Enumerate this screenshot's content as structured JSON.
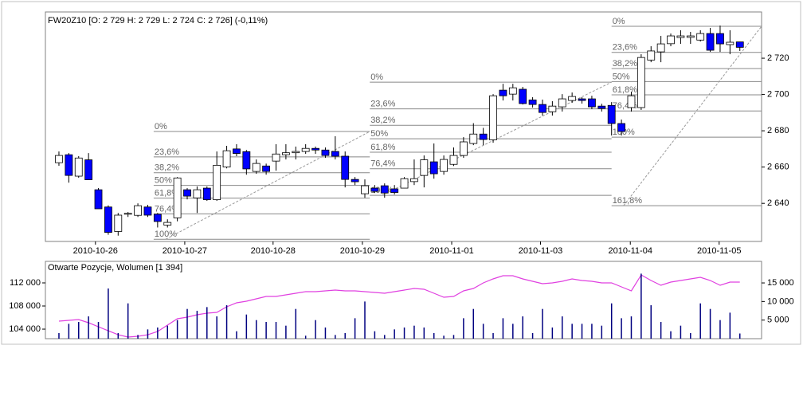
{
  "chart_data": [
    {
      "type": "candlestick",
      "title": "FW20Z10 [O: 2 729  H: 2 729  L: 2 724  C: 2 726] (-0,11%)",
      "up_color": "#ffffff",
      "down_color": "#0000ff",
      "xlim": [
        -1.37,
        71.2
      ],
      "ylim": [
        2619,
        2745.5
      ],
      "yticks": [
        {
          "value": 2640,
          "label": "2 640"
        },
        {
          "value": 2660,
          "label": "2 660"
        },
        {
          "value": 2680,
          "label": "2 680"
        },
        {
          "value": 2700,
          "label": "2 700"
        },
        {
          "value": 2720,
          "label": "2 720"
        }
      ],
      "xticks": [
        {
          "value": 3.7,
          "label": "2010-10-26"
        },
        {
          "value": 12.75,
          "label": "2010-10-27"
        },
        {
          "value": 21.7,
          "label": "2010-10-28"
        },
        {
          "value": 30.75,
          "label": "2010-10-29"
        },
        {
          "value": 39.8,
          "label": "2010-11-01"
        },
        {
          "value": 48.8,
          "label": "2010-11-03"
        },
        {
          "value": 57.9,
          "label": "2010-11-04"
        },
        {
          "value": 66.9,
          "label": "2010-11-05"
        }
      ],
      "candles": [
        {
          "open": 2662.4,
          "high": 2668.6,
          "low": 2660.7,
          "close": 2666.4
        },
        {
          "open": 2666.8,
          "high": 2667.7,
          "low": 2651.4,
          "close": 2655.4
        },
        {
          "open": 2655,
          "high": 2666,
          "low": 2654.1,
          "close": 2665
        },
        {
          "open": 2664,
          "high": 2667.7,
          "low": 2653,
          "close": 2653
        },
        {
          "open": 2647.5,
          "high": 2648.4,
          "low": 2637,
          "close": 2637
        },
        {
          "open": 2638,
          "high": 2638.9,
          "low": 2622.7,
          "close": 2624
        },
        {
          "open": 2624.5,
          "high": 2634.7,
          "low": 2622.2,
          "close": 2633.5
        },
        {
          "open": 2634,
          "high": 2635.2,
          "low": 2632.5,
          "close": 2634.5
        },
        {
          "open": 2633.4,
          "high": 2640,
          "low": 2632.5,
          "close": 2638.7
        },
        {
          "open": 2638,
          "high": 2639.2,
          "low": 2632.5,
          "close": 2633.5
        },
        {
          "open": 2634,
          "high": 2634.7,
          "low": 2626.7,
          "close": 2630
        },
        {
          "open": 2628,
          "high": 2631.2,
          "low": 2626.7,
          "close": 2629.5
        },
        {
          "open": 2632,
          "high": 2654.5,
          "low": 2630.1,
          "close": 2654
        },
        {
          "open": 2647.5,
          "high": 2648.4,
          "low": 2642.2,
          "close": 2644
        },
        {
          "open": 2643,
          "high": 2649.3,
          "low": 2634.7,
          "close": 2647.5
        },
        {
          "open": 2648.4,
          "high": 2649.3,
          "low": 2641.4,
          "close": 2642
        },
        {
          "open": 2642,
          "high": 2668.6,
          "low": 2641.4,
          "close": 2661
        },
        {
          "open": 2660,
          "high": 2671.7,
          "low": 2659.3,
          "close": 2669
        },
        {
          "open": 2670,
          "high": 2672.6,
          "low": 2666,
          "close": 2667.5
        },
        {
          "open": 2668.5,
          "high": 2669.4,
          "low": 2655.8,
          "close": 2659
        },
        {
          "open": 2657.6,
          "high": 2664.2,
          "low": 2656.3,
          "close": 2662
        },
        {
          "open": 2660.6,
          "high": 2661.9,
          "low": 2655.8,
          "close": 2657.6
        },
        {
          "open": 2663.3,
          "high": 2672.6,
          "low": 2658,
          "close": 2667.2
        },
        {
          "open": 2666.8,
          "high": 2672.6,
          "low": 2664.2,
          "close": 2667.9
        },
        {
          "open": 2667.9,
          "high": 2671.3,
          "low": 2664.2,
          "close": 2668.6
        },
        {
          "open": 2668.6,
          "high": 2672.6,
          "low": 2667.3,
          "close": 2670.3
        },
        {
          "open": 2670.3,
          "high": 2671.3,
          "low": 2667.3,
          "close": 2669.4
        },
        {
          "open": 2669.4,
          "high": 2670.8,
          "low": 2665.1,
          "close": 2666.4
        },
        {
          "open": 2668.6,
          "high": 2677,
          "low": 2664.2,
          "close": 2666
        },
        {
          "open": 2666,
          "high": 2668.6,
          "low": 2648.8,
          "close": 2653.2
        },
        {
          "open": 2653.2,
          "high": 2654.5,
          "low": 2650.1,
          "close": 2651.9
        },
        {
          "open": 2645.3,
          "high": 2653.2,
          "low": 2643.1,
          "close": 2649.7
        },
        {
          "open": 2648.4,
          "high": 2650.1,
          "low": 2645.7,
          "close": 2646.6
        },
        {
          "open": 2649.7,
          "high": 2651,
          "low": 2643.1,
          "close": 2645.7
        },
        {
          "open": 2648,
          "high": 2650.1,
          "low": 2644.9,
          "close": 2646
        },
        {
          "open": 2648.4,
          "high": 2654.5,
          "low": 2648.4,
          "close": 2653.6
        },
        {
          "open": 2652,
          "high": 2664.2,
          "low": 2650.1,
          "close": 2653.6
        },
        {
          "open": 2655.4,
          "high": 2666.4,
          "low": 2648.8,
          "close": 2664
        },
        {
          "open": 2662.9,
          "high": 2673,
          "low": 2653.6,
          "close": 2656.3
        },
        {
          "open": 2657.6,
          "high": 2666.4,
          "low": 2655.8,
          "close": 2664.2
        },
        {
          "open": 2661.5,
          "high": 2670.8,
          "low": 2660.6,
          "close": 2666.4
        },
        {
          "open": 2666.4,
          "high": 2676.5,
          "low": 2665.1,
          "close": 2673.9
        },
        {
          "open": 2673,
          "high": 2684.2,
          "low": 2672.1,
          "close": 2678.2
        },
        {
          "open": 2678.2,
          "high": 2681.6,
          "low": 2672.1,
          "close": 2675.2
        },
        {
          "open": 2675,
          "high": 2700.2,
          "low": 2673.4,
          "close": 2699.3
        },
        {
          "open": 2702.4,
          "high": 2705.9,
          "low": 2696.7,
          "close": 2699.3
        },
        {
          "open": 2700.2,
          "high": 2705.9,
          "low": 2696.7,
          "close": 2703.7
        },
        {
          "open": 2702.9,
          "high": 2704.2,
          "low": 2694.5,
          "close": 2695
        },
        {
          "open": 2697,
          "high": 2698.5,
          "low": 2692.8,
          "close": 2694.5
        },
        {
          "open": 2694.5,
          "high": 2697.2,
          "low": 2688.4,
          "close": 2690.1
        },
        {
          "open": 2690.5,
          "high": 2696.3,
          "low": 2688.4,
          "close": 2693.6
        },
        {
          "open": 2693.2,
          "high": 2700.2,
          "low": 2690.6,
          "close": 2697.6
        },
        {
          "open": 2696.7,
          "high": 2701.1,
          "low": 2695.4,
          "close": 2698.9
        },
        {
          "open": 2697.6,
          "high": 2698.5,
          "low": 2695,
          "close": 2696.7
        },
        {
          "open": 2697.6,
          "high": 2699.3,
          "low": 2691.9,
          "close": 2693.2
        },
        {
          "open": 2693.6,
          "high": 2694.9,
          "low": 2690.6,
          "close": 2692.3
        },
        {
          "open": 2694,
          "high": 2695.8,
          "low": 2677.4,
          "close": 2684
        },
        {
          "open": 2684,
          "high": 2686.2,
          "low": 2677.4,
          "close": 2679.6
        },
        {
          "open": 2692.8,
          "high": 2701.5,
          "low": 2690.6,
          "close": 2699.3
        },
        {
          "open": 2692.8,
          "high": 2722.2,
          "low": 2691.5,
          "close": 2720.4
        },
        {
          "open": 2719,
          "high": 2726.6,
          "low": 2717.8,
          "close": 2724
        },
        {
          "open": 2723.5,
          "high": 2732.3,
          "low": 2717.8,
          "close": 2727.9
        },
        {
          "open": 2728,
          "high": 2733.6,
          "low": 2726.6,
          "close": 2732.3
        },
        {
          "open": 2731.4,
          "high": 2735.4,
          "low": 2727.9,
          "close": 2732.3
        },
        {
          "open": 2731.5,
          "high": 2734.5,
          "low": 2727.9,
          "close": 2732.3
        },
        {
          "open": 2730,
          "high": 2735.4,
          "low": 2729.2,
          "close": 2733.6
        },
        {
          "open": 2733.6,
          "high": 2736.7,
          "low": 2723.5,
          "close": 2724.4
        },
        {
          "open": 2733.6,
          "high": 2738,
          "low": 2723.5,
          "close": 2727.9
        },
        {
          "open": 2727.5,
          "high": 2735.4,
          "low": 2722.2,
          "close": 2728.8
        },
        {
          "open": 2729,
          "high": 2729,
          "low": 2724,
          "close": 2726
        }
      ],
      "fibonacci": [
        {
          "x_start": 9.6,
          "x_end": 31.5,
          "levels": [
            {
              "label": "0%",
              "value": 2679.6
            },
            {
              "label": "23,6%",
              "value": 2665.6
            },
            {
              "label": "38,2%",
              "value": 2656.9
            },
            {
              "label": "50%",
              "value": 2649.9
            },
            {
              "label": "61,8%",
              "value": 2642.9
            },
            {
              "label": "76,4%",
              "value": 2634.2
            },
            {
              "label": "100%",
              "value": 2620.2
            }
          ]
        },
        {
          "x_start": 31.5,
          "x_end": 56,
          "levels": [
            {
              "label": "0%",
              "value": 2706.8
            },
            {
              "label": "23,6%",
              "value": 2692.1
            },
            {
              "label": "38,2%",
              "value": 2683
            },
            {
              "label": "50%",
              "value": 2675.6
            },
            {
              "label": "61,8%",
              "value": 2668.2
            },
            {
              "label": "76,4%",
              "value": 2659.1
            },
            {
              "label": "100%",
              "value": 2644.4
            }
          ]
        },
        {
          "x_start": 56,
          "x_end": 71.2,
          "levels": [
            {
              "label": "0%",
              "value": 2737.6
            },
            {
              "label": "23,6%",
              "value": 2723.2
            },
            {
              "label": "38,2%",
              "value": 2714.3
            },
            {
              "label": "50%",
              "value": 2707.1
            },
            {
              "label": "61,8%",
              "value": 2699.8
            },
            {
              "label": "76,4%",
              "value": 2690.9
            },
            {
              "label": "100%",
              "value": 2676.5
            },
            {
              "label": "161,8%",
              "value": 2638.7
            }
          ]
        }
      ]
    },
    {
      "type": "volume",
      "title": "Otwarte Pozycje, Wolumen [1 394]",
      "xlim": [
        -1.37,
        71.2
      ],
      "ylim": [
        102350,
        115720
      ],
      "yticks": [
        {
          "value": 104000,
          "label": "104 000"
        },
        {
          "value": 108000,
          "label": "108 000"
        },
        {
          "value": 112000,
          "label": "112 000"
        }
      ],
      "y2lim": [
        0,
        20800
      ],
      "y2ticks": [
        {
          "value": 5000,
          "label": "5 000"
        },
        {
          "value": 10000,
          "label": "10 000"
        },
        {
          "value": 15000,
          "label": "15 000"
        }
      ],
      "series": [
        {
          "color": "#e040e0",
          "values": [
            105380,
            105520,
            105660,
            105100,
            104410,
            103720,
            103030,
            102620,
            102760,
            103030,
            103590,
            104690,
            105790,
            106070,
            106480,
            106760,
            106900,
            107860,
            108550,
            108830,
            109240,
            109650,
            109650,
            109930,
            110210,
            110480,
            110480,
            110620,
            110760,
            110620,
            110620,
            110480,
            110340,
            110210,
            110480,
            110760,
            111030,
            110900,
            110210,
            109520,
            109650,
            110620,
            111030,
            112000,
            112690,
            113240,
            113240,
            112690,
            112280,
            111860,
            112000,
            112280,
            112690,
            112410,
            112280,
            112000,
            112000,
            111310,
            110620,
            113380,
            112410,
            111590,
            112140,
            112410,
            112690,
            112970,
            112410,
            111590,
            112140,
            112140
          ]
        },
        {
          "color": "#000080",
          "axis": "y2",
          "values": [
            1500,
            4000,
            4500,
            6000,
            4500,
            13500,
            1500,
            9500,
            1000,
            2500,
            3000,
            3500,
            5000,
            8000,
            7500,
            8500,
            6000,
            9000,
            2000,
            6500,
            5000,
            4500,
            4500,
            3500,
            8000,
            800,
            5000,
            3000,
            1000,
            1500,
            5500,
            10000,
            2000,
            1000,
            2500,
            3000,
            3500,
            3000,
            1500,
            800,
            1000,
            5500,
            8000,
            4000,
            1500,
            5500,
            4000,
            6000,
            1500,
            8000,
            3000,
            6000,
            4000,
            4000,
            4000,
            3500,
            9500,
            5500,
            6000,
            17500,
            9000,
            4500,
            2000,
            3500,
            1500,
            9500,
            8000,
            5000,
            7000,
            1394
          ]
        }
      ]
    }
  ]
}
